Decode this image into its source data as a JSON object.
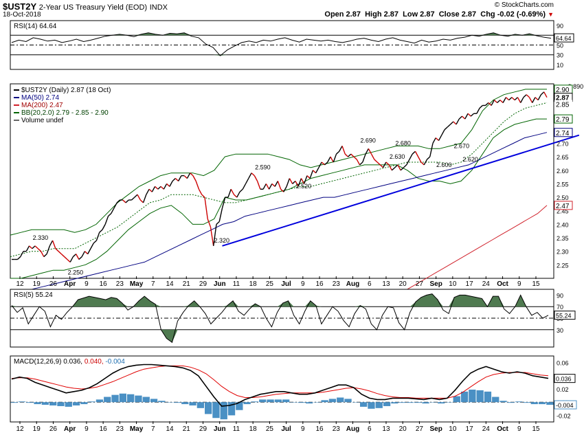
{
  "header": {
    "symbol": "$UST2Y",
    "name": "2-Year US Treasury Yield (EOD)",
    "exchange": "INDX",
    "date": "18-Oct-2018",
    "copyright": "© StockCharts.com",
    "ohlc": {
      "open": "Open 2.87",
      "high": "High 2.87",
      "low": "Low 2.87",
      "close": "Close 2.87",
      "chg": "Chg -0.02 (-0.69%)"
    }
  },
  "colors": {
    "price": "#000000",
    "down": "#cc0000",
    "ma50": "#000080",
    "ma200": "#d0202a",
    "bb": "#006400",
    "trend": "#0000dd",
    "rsi_fill": "#4f7a50",
    "macd_hist": "#4a90c4",
    "signal": "#e00000"
  },
  "chart_data": [
    {
      "panel": "rsi14",
      "type": "line",
      "legend": "RSI(14) 64.64",
      "last_value_label": "64.64",
      "ylim": [
        0,
        100
      ],
      "yticks": [
        90,
        70,
        50,
        30,
        10
      ],
      "values": [
        55,
        60,
        57,
        65,
        62,
        58,
        60,
        55,
        58,
        62,
        57,
        60,
        64,
        68,
        70,
        72,
        70,
        67,
        72,
        75,
        72,
        70,
        74,
        73,
        75,
        68,
        65,
        52,
        45,
        28,
        40,
        48,
        55,
        58,
        55,
        60,
        58,
        62,
        65,
        60,
        56,
        62,
        60,
        58,
        60,
        57,
        55,
        58,
        62,
        64,
        60,
        57,
        62,
        65,
        60,
        57,
        54,
        60,
        56,
        58,
        62,
        60,
        64,
        66,
        70,
        68,
        72,
        75,
        70,
        68,
        72,
        70,
        73,
        69,
        66,
        64
      ]
    },
    {
      "panel": "price",
      "type": "line",
      "title": "$UST2Y (Daily) 2.87 (18 Oct)",
      "ylim": [
        2.2,
        2.92
      ],
      "yticks": [
        2.25,
        2.3,
        2.35,
        2.4,
        2.45,
        2.5,
        2.55,
        2.6,
        2.65,
        2.7,
        2.75
      ],
      "right_labels": {
        "bb_upper": "2.90",
        "close": "2.87",
        "bb_middle": "2.85",
        "bb_lower": "2.79",
        "ma50": "2.74",
        "ma200": "2.47"
      },
      "x_labels": [
        "12",
        "19",
        "26",
        "Apr",
        "9",
        "16",
        "23",
        "May",
        "7",
        "14",
        "21",
        "29",
        "Jun",
        "11",
        "18",
        "25",
        "Jul",
        "9",
        "16",
        "23",
        "Aug",
        "6",
        "13",
        "20",
        "27",
        "Sep",
        "10",
        "17",
        "24",
        "Oct",
        "9",
        "15"
      ],
      "legend": [
        {
          "label": "$UST2Y (Daily) 2.87 (18 Oct)"
        },
        {
          "label": "MA(50) 2.74"
        },
        {
          "label": "MA(200) 2.47"
        },
        {
          "label": "BB(20,2.0) 2.79 - 2.85 - 2.90"
        },
        {
          "label": "Volume undef"
        }
      ],
      "annotations": [
        {
          "text": "2.330",
          "x": 10,
          "y": 2.33
        },
        {
          "text": "2.250",
          "x": 22,
          "y": 2.25
        },
        {
          "text": "2.320",
          "x": 72,
          "y": 2.32
        },
        {
          "text": "2.590",
          "x": 86,
          "y": 2.59
        },
        {
          "text": "2.520",
          "x": 100,
          "y": 2.52
        },
        {
          "text": "2.690",
          "x": 122,
          "y": 2.69
        },
        {
          "text": "2.680",
          "x": 134,
          "y": 2.68
        },
        {
          "text": "2.630",
          "x": 132,
          "y": 2.63
        },
        {
          "text": "2.600",
          "x": 148,
          "y": 2.6
        },
        {
          "text": "2.670",
          "x": 154,
          "y": 2.67
        },
        {
          "text": "2.620",
          "x": 157,
          "y": 2.62
        },
        {
          "text": "2.890",
          "x": 193,
          "y": 2.89
        }
      ],
      "close": [
        2.27,
        2.27,
        2.27,
        2.28,
        2.3,
        2.3,
        2.32,
        2.31,
        2.32,
        2.31,
        2.3,
        2.28,
        2.29,
        2.32,
        2.34,
        2.31,
        2.3,
        2.29,
        2.28,
        2.27,
        2.26,
        2.28,
        2.29,
        2.27,
        2.28,
        2.3,
        2.29,
        2.31,
        2.33,
        2.34,
        2.37,
        2.38,
        2.4,
        2.43,
        2.44,
        2.46,
        2.48,
        2.49,
        2.49,
        2.48,
        2.49,
        2.49,
        2.5,
        2.51,
        2.49,
        2.48,
        2.51,
        2.53,
        2.52,
        2.54,
        2.53,
        2.54,
        2.53,
        2.55,
        2.54,
        2.56,
        2.57,
        2.56,
        2.58,
        2.58,
        2.57,
        2.59,
        2.58,
        2.56,
        2.53,
        2.51,
        2.5,
        2.42,
        2.39,
        2.32,
        2.4,
        2.41,
        2.46,
        2.5,
        2.5,
        2.53,
        2.51,
        2.5,
        2.52,
        2.53,
        2.55,
        2.57,
        2.59,
        2.58,
        2.56,
        2.53,
        2.53,
        2.55,
        2.53,
        2.55,
        2.54,
        2.56,
        2.53,
        2.52,
        2.54,
        2.57,
        2.55,
        2.56,
        2.54,
        2.57,
        2.55,
        2.58,
        2.57,
        2.6,
        2.59,
        2.61,
        2.63,
        2.62,
        2.63,
        2.65,
        2.63,
        2.66,
        2.67,
        2.69,
        2.66,
        2.65,
        2.66,
        2.65,
        2.64,
        2.62,
        2.63,
        2.66,
        2.68,
        2.66,
        2.64,
        2.63,
        2.62,
        2.61,
        2.63,
        2.62,
        2.6,
        2.61,
        2.62,
        2.6,
        2.61,
        2.62,
        2.64,
        2.66,
        2.67,
        2.65,
        2.63,
        2.62,
        2.64,
        2.65,
        2.7,
        2.72,
        2.71,
        2.73,
        2.75,
        2.76,
        2.77,
        2.78,
        2.77,
        2.79,
        2.8,
        2.79,
        2.81,
        2.8,
        2.81,
        2.81,
        2.83,
        2.84,
        2.84,
        2.85,
        2.84,
        2.86,
        2.85,
        2.86,
        2.85,
        2.87,
        2.86,
        2.87,
        2.86,
        2.87,
        2.85,
        2.87,
        2.88,
        2.87,
        2.85,
        2.87,
        2.86,
        2.88,
        2.89,
        2.87
      ],
      "ma50": [
        2.14,
        2.15,
        2.16,
        2.17,
        2.18,
        2.19,
        2.2,
        2.21,
        2.22,
        2.23,
        2.24,
        2.25,
        2.26,
        2.28,
        2.3,
        2.32,
        2.34,
        2.36,
        2.38,
        2.4,
        2.41,
        2.43,
        2.44,
        2.45,
        2.46,
        2.47,
        2.48,
        2.49,
        2.5,
        2.5,
        2.51,
        2.52,
        2.53,
        2.54,
        2.55,
        2.56,
        2.57,
        2.58,
        2.59,
        2.6,
        2.61,
        2.62,
        2.64,
        2.66,
        2.68,
        2.7,
        2.72,
        2.73,
        2.74
      ],
      "ma200": [
        2.0,
        2.02,
        2.04,
        2.06,
        2.08,
        2.1,
        2.12,
        2.14,
        2.16,
        2.18,
        2.2,
        2.22,
        2.24,
        2.26,
        2.28,
        2.3,
        2.32,
        2.34,
        2.36,
        2.38,
        2.4,
        2.42,
        2.44,
        2.47
      ],
      "bb_upper": [
        2.36,
        2.37,
        2.38,
        2.38,
        2.38,
        2.38,
        2.37,
        2.38,
        2.4,
        2.44,
        2.48,
        2.51,
        2.54,
        2.56,
        2.58,
        2.59,
        2.59,
        2.59,
        2.58,
        2.6,
        2.65,
        2.66,
        2.66,
        2.66,
        2.66,
        2.65,
        2.64,
        2.62,
        2.61,
        2.62,
        2.63,
        2.64,
        2.65,
        2.66,
        2.67,
        2.68,
        2.69,
        2.69,
        2.69,
        2.68,
        2.68,
        2.69,
        2.7,
        2.75,
        2.82,
        2.86,
        2.88,
        2.89,
        2.9,
        2.9,
        2.9
      ],
      "bb_mid": [
        2.28,
        2.29,
        2.3,
        2.3,
        2.31,
        2.31,
        2.31,
        2.33,
        2.35,
        2.37,
        2.39,
        2.42,
        2.45,
        2.48,
        2.49,
        2.51,
        2.51,
        2.51,
        2.5,
        2.49,
        2.48,
        2.48,
        2.49,
        2.5,
        2.51,
        2.52,
        2.53,
        2.54,
        2.54,
        2.55,
        2.56,
        2.57,
        2.58,
        2.59,
        2.6,
        2.61,
        2.62,
        2.63,
        2.63,
        2.63,
        2.63,
        2.62,
        2.63,
        2.66,
        2.7,
        2.74,
        2.78,
        2.81,
        2.83,
        2.84,
        2.85
      ],
      "bb_lower": [
        2.2,
        2.2,
        2.21,
        2.22,
        2.23,
        2.23,
        2.24,
        2.25,
        2.27,
        2.3,
        2.34,
        2.38,
        2.41,
        2.44,
        2.46,
        2.47,
        2.44,
        2.4,
        2.4,
        2.42,
        2.5,
        2.49,
        2.49,
        2.5,
        2.51,
        2.52,
        2.53,
        2.55,
        2.57,
        2.58,
        2.59,
        2.6,
        2.61,
        2.62,
        2.62,
        2.62,
        2.62,
        2.6,
        2.57,
        2.56,
        2.56,
        2.55,
        2.56,
        2.6,
        2.66,
        2.72,
        2.75,
        2.77,
        2.78,
        2.79,
        2.79
      ],
      "trendline": [
        [
          72,
          2.32
        ],
        [
          194,
          2.73
        ]
      ]
    },
    {
      "panel": "rsi5",
      "type": "line",
      "legend": "RSI(5) 55.24",
      "last_value_label": "55.24",
      "ylim": [
        0,
        100
      ],
      "yticks": [
        90,
        70,
        50,
        30
      ],
      "values": [
        72,
        60,
        68,
        40,
        55,
        70,
        62,
        35,
        55,
        48,
        60,
        70,
        82,
        85,
        88,
        86,
        84,
        82,
        86,
        84,
        76,
        64,
        70,
        80,
        88,
        80,
        74,
        30,
        15,
        8,
        45,
        60,
        72,
        80,
        70,
        58,
        40,
        50,
        60,
        72,
        80,
        62,
        55,
        66,
        75,
        70,
        50,
        35,
        60,
        76,
        80,
        55,
        40,
        62,
        80,
        72,
        40,
        55,
        70,
        62,
        46,
        35,
        58,
        72,
        66,
        40,
        30,
        55,
        70,
        68,
        42,
        30,
        60,
        78,
        86,
        90,
        92,
        82,
        64,
        58,
        86,
        90,
        90,
        88,
        86,
        84,
        70,
        88,
        88,
        66,
        58,
        70,
        90,
        70,
        55,
        60,
        50,
        55
      ]
    },
    {
      "panel": "macd",
      "type": "line",
      "legend": "MACD(12,26,9) 0.036, 0.040, -0.004",
      "macd_label": "0.036",
      "signal_label": "0.040",
      "hist_label": "-0.004",
      "ylim": [
        -0.03,
        0.07
      ],
      "yticks": [
        0.06,
        0.04,
        0.02,
        0.0,
        -0.02
      ],
      "macd": [
        0.035,
        0.038,
        0.036,
        0.03,
        0.026,
        0.022,
        0.018,
        0.014,
        0.016,
        0.018,
        0.022,
        0.028,
        0.036,
        0.044,
        0.05,
        0.054,
        0.056,
        0.057,
        0.057,
        0.056,
        0.055,
        0.054,
        0.052,
        0.048,
        0.04,
        0.024,
        0.008,
        -0.006,
        -0.005,
        -0.002,
        0.004,
        0.008,
        0.012,
        0.014,
        0.016,
        0.016,
        0.014,
        0.012,
        0.012,
        0.014,
        0.018,
        0.022,
        0.026,
        0.026,
        0.022,
        0.012,
        0.006,
        0.004,
        0.004,
        0.006,
        0.006,
        0.006,
        0.005,
        0.004,
        0.006,
        0.004,
        0.006,
        0.018,
        0.032,
        0.044,
        0.05,
        0.054,
        0.05,
        0.046,
        0.044,
        0.046,
        0.044,
        0.04,
        0.038,
        0.036
      ],
      "signal": [
        0.036,
        0.037,
        0.037,
        0.035,
        0.032,
        0.029,
        0.026,
        0.023,
        0.021,
        0.02,
        0.021,
        0.023,
        0.027,
        0.031,
        0.036,
        0.041,
        0.046,
        0.05,
        0.052,
        0.054,
        0.055,
        0.055,
        0.055,
        0.053,
        0.049,
        0.043,
        0.034,
        0.024,
        0.016,
        0.01,
        0.007,
        0.007,
        0.008,
        0.01,
        0.012,
        0.013,
        0.014,
        0.014,
        0.014,
        0.014,
        0.015,
        0.017,
        0.019,
        0.021,
        0.022,
        0.02,
        0.017,
        0.013,
        0.01,
        0.008,
        0.007,
        0.007,
        0.006,
        0.006,
        0.006,
        0.006,
        0.006,
        0.009,
        0.015,
        0.023,
        0.031,
        0.038,
        0.042,
        0.044,
        0.045,
        0.045,
        0.045,
        0.043,
        0.041,
        0.04
      ],
      "hist": [
        -0.001,
        0.001,
        -0.001,
        -0.003,
        -0.004,
        -0.005,
        -0.006,
        -0.007,
        -0.005,
        -0.003,
        0.001,
        0.004,
        0.008,
        0.011,
        0.013,
        0.012,
        0.01,
        0.008,
        0.005,
        0.002,
        0.0,
        -0.001,
        -0.003,
        -0.005,
        -0.009,
        -0.018,
        -0.024,
        -0.026,
        -0.02,
        -0.012,
        -0.003,
        0.001,
        0.004,
        0.004,
        0.004,
        0.004,
        0.0,
        -0.001,
        -0.002,
        0.0,
        0.003,
        0.005,
        0.007,
        0.005,
        0.0,
        -0.007,
        -0.01,
        -0.009,
        -0.006,
        -0.002,
        -0.001,
        -0.001,
        -0.001,
        -0.002,
        0.0,
        -0.002,
        0.0,
        0.009,
        0.016,
        0.019,
        0.018,
        0.016,
        0.008,
        0.002,
        -0.001,
        0.001,
        -0.001,
        -0.003,
        -0.003,
        -0.004
      ]
    }
  ]
}
